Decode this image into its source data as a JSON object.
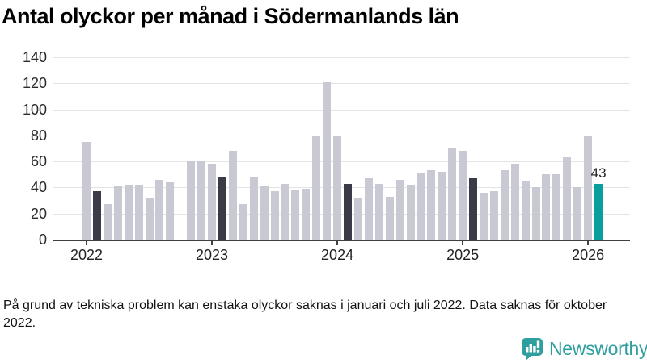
{
  "title": "Antal olyckor per månad i Södermanlands län",
  "footer": {
    "text": "På grund av tekniska problem kan enstaka olyckor saknas i januari och juli 2022. Data saknas för oktober 2022."
  },
  "branding": {
    "name": "Newsworthy",
    "icon": "newsworthy-speech-bubble-barchart-icon",
    "color": "#2f9e9e"
  },
  "colors": {
    "bar_normal": "#c9c9d3",
    "bar_highlight": "#3b3b47",
    "bar_current": "#0a9f9c",
    "gridline": "#e3e3e4",
    "axis": "#3f3f3f"
  },
  "chart_data": {
    "type": "bar",
    "title": "Antal olyckor per månad i Södermanlands län",
    "xlabel": "",
    "ylabel": "",
    "ylim": [
      0,
      140
    ],
    "yticks": [
      0,
      20,
      40,
      60,
      80,
      100,
      120,
      140
    ],
    "grid": "horizontal",
    "legend": "none",
    "annotation": {
      "text": "43",
      "month_index": 49
    },
    "year_ticks": [
      {
        "label": "2022",
        "month_index": 0
      },
      {
        "label": "2023",
        "month_index": 12
      },
      {
        "label": "2024",
        "month_index": 24
      },
      {
        "label": "2025",
        "month_index": 36
      },
      {
        "label": "2026",
        "month_index": 48
      }
    ],
    "months": [
      {
        "month": "2022-01",
        "value": 75,
        "style": "normal"
      },
      {
        "month": "2022-02",
        "value": 37,
        "style": "highlight"
      },
      {
        "month": "2022-03",
        "value": 27,
        "style": "normal"
      },
      {
        "month": "2022-04",
        "value": 41,
        "style": "normal"
      },
      {
        "month": "2022-05",
        "value": 42,
        "style": "normal"
      },
      {
        "month": "2022-06",
        "value": 42,
        "style": "normal"
      },
      {
        "month": "2022-07",
        "value": 32,
        "style": "normal"
      },
      {
        "month": "2022-08",
        "value": 46,
        "style": "normal"
      },
      {
        "month": "2022-09",
        "value": 44,
        "style": "normal"
      },
      {
        "month": "2022-10",
        "value": null,
        "style": "missing"
      },
      {
        "month": "2022-11",
        "value": 61,
        "style": "normal"
      },
      {
        "month": "2022-12",
        "value": 60,
        "style": "normal"
      },
      {
        "month": "2023-01",
        "value": 58,
        "style": "normal"
      },
      {
        "month": "2023-02",
        "value": 48,
        "style": "highlight"
      },
      {
        "month": "2023-03",
        "value": 68,
        "style": "normal"
      },
      {
        "month": "2023-04",
        "value": 27,
        "style": "normal"
      },
      {
        "month": "2023-05",
        "value": 48,
        "style": "normal"
      },
      {
        "month": "2023-06",
        "value": 41,
        "style": "normal"
      },
      {
        "month": "2023-07",
        "value": 37,
        "style": "normal"
      },
      {
        "month": "2023-08",
        "value": 43,
        "style": "normal"
      },
      {
        "month": "2023-09",
        "value": 38,
        "style": "normal"
      },
      {
        "month": "2023-10",
        "value": 39,
        "style": "normal"
      },
      {
        "month": "2023-11",
        "value": 80,
        "style": "normal"
      },
      {
        "month": "2023-12",
        "value": 121,
        "style": "normal"
      },
      {
        "month": "2024-01",
        "value": 80,
        "style": "normal"
      },
      {
        "month": "2024-02",
        "value": 43,
        "style": "highlight"
      },
      {
        "month": "2024-03",
        "value": 32,
        "style": "normal"
      },
      {
        "month": "2024-04",
        "value": 47,
        "style": "normal"
      },
      {
        "month": "2024-05",
        "value": 43,
        "style": "normal"
      },
      {
        "month": "2024-06",
        "value": 33,
        "style": "normal"
      },
      {
        "month": "2024-07",
        "value": 46,
        "style": "normal"
      },
      {
        "month": "2024-08",
        "value": 42,
        "style": "normal"
      },
      {
        "month": "2024-09",
        "value": 51,
        "style": "normal"
      },
      {
        "month": "2024-10",
        "value": 53,
        "style": "normal"
      },
      {
        "month": "2024-11",
        "value": 52,
        "style": "normal"
      },
      {
        "month": "2024-12",
        "value": 70,
        "style": "normal"
      },
      {
        "month": "2025-01",
        "value": 68,
        "style": "normal"
      },
      {
        "month": "2025-02",
        "value": 47,
        "style": "highlight"
      },
      {
        "month": "2025-03",
        "value": 36,
        "style": "normal"
      },
      {
        "month": "2025-04",
        "value": 37,
        "style": "normal"
      },
      {
        "month": "2025-05",
        "value": 53,
        "style": "normal"
      },
      {
        "month": "2025-06",
        "value": 58,
        "style": "normal"
      },
      {
        "month": "2025-07",
        "value": 45,
        "style": "normal"
      },
      {
        "month": "2025-08",
        "value": 40,
        "style": "normal"
      },
      {
        "month": "2025-09",
        "value": 50,
        "style": "normal"
      },
      {
        "month": "2025-10",
        "value": 50,
        "style": "normal"
      },
      {
        "month": "2025-11",
        "value": 63,
        "style": "normal"
      },
      {
        "month": "2025-12",
        "value": 40,
        "style": "normal"
      },
      {
        "month": "2026-01",
        "value": 80,
        "style": "normal"
      },
      {
        "month": "2026-02",
        "value": 43,
        "style": "current"
      }
    ]
  }
}
